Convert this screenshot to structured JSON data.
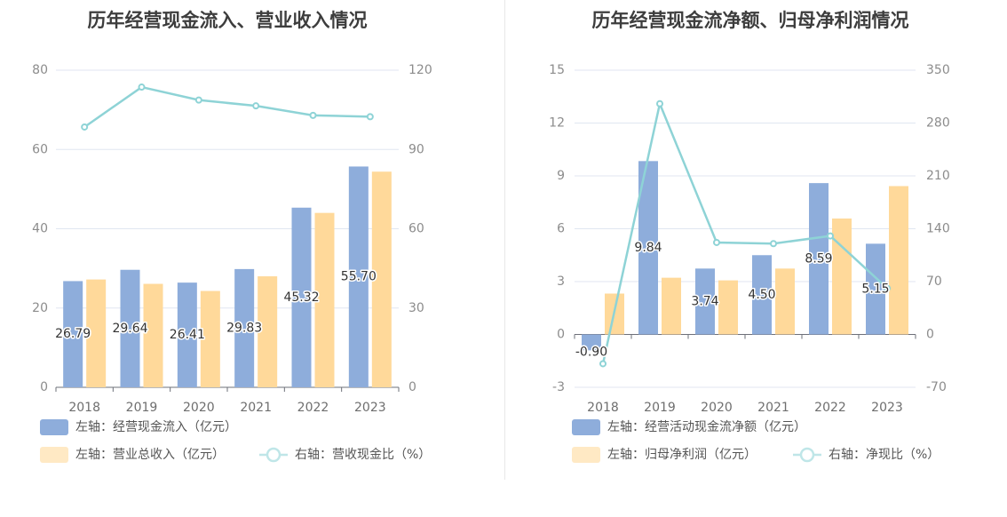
{
  "chart_data": [
    {
      "type": "bar",
      "title": "历年经营现金流入、营业收入情况",
      "categories": [
        "2018",
        "2019",
        "2020",
        "2021",
        "2022",
        "2023"
      ],
      "left_axis": {
        "min": 0,
        "max": 80,
        "ticks": [
          "0",
          "20",
          "40",
          "60",
          "80"
        ]
      },
      "right_axis": {
        "min": 0,
        "max": 120,
        "ticks": [
          "0",
          "30",
          "60",
          "90",
          "120"
        ]
      },
      "series": [
        {
          "name": "左轴：经营现金流入（亿元）",
          "type": "bar",
          "axis": "left",
          "color": "#8eaddb",
          "values": [
            26.79,
            29.64,
            26.41,
            29.83,
            45.32,
            55.7
          ],
          "labels": [
            "26.79",
            "29.64",
            "26.41",
            "29.83",
            "45.32",
            "55.70"
          ]
        },
        {
          "name": "左轴：营业总收入（亿元）",
          "type": "bar",
          "axis": "left",
          "color": "#ffd99a",
          "values": [
            27.2,
            26.1,
            24.3,
            28.0,
            44.0,
            54.4
          ]
        },
        {
          "name": "右轴：营收现金比（%）",
          "type": "line",
          "axis": "right",
          "color": "#8ed3d6",
          "values": [
            98.5,
            113.6,
            108.7,
            106.5,
            102.9,
            102.4
          ]
        }
      ],
      "grid": true,
      "legend": "bottom"
    },
    {
      "type": "bar",
      "title": "历年经营现金流净额、归母净利润情况",
      "categories": [
        "2018",
        "2019",
        "2020",
        "2021",
        "2022",
        "2023"
      ],
      "left_axis": {
        "min": -3,
        "max": 15,
        "ticks": [
          "-3",
          "0",
          "3",
          "6",
          "9",
          "12",
          "15"
        ]
      },
      "right_axis": {
        "min": -70,
        "max": 350,
        "ticks": [
          "-70",
          "0",
          "70",
          "140",
          "210",
          "280",
          "350"
        ]
      },
      "series": [
        {
          "name": "左轴：经营活动现金流净额（亿元）",
          "type": "bar",
          "axis": "left",
          "color": "#8eaddb",
          "values": [
            -0.9,
            9.84,
            3.74,
            4.5,
            8.59,
            5.15
          ],
          "labels": [
            "-0.90",
            "9.84",
            "3.74",
            "4.50",
            "8.59",
            "5.15"
          ]
        },
        {
          "name": "左轴：归母净利润（亿元）",
          "type": "bar",
          "axis": "left",
          "color": "#ffd99a",
          "values": [
            2.32,
            3.22,
            3.07,
            3.74,
            6.58,
            8.42
          ]
        },
        {
          "name": "右轴：净现比（%）",
          "type": "line",
          "axis": "right",
          "color": "#8ed3d6",
          "values": [
            -38.8,
            305.6,
            121.8,
            120.3,
            130.5,
            61.2
          ]
        }
      ],
      "grid": true,
      "legend": "bottom"
    }
  ]
}
